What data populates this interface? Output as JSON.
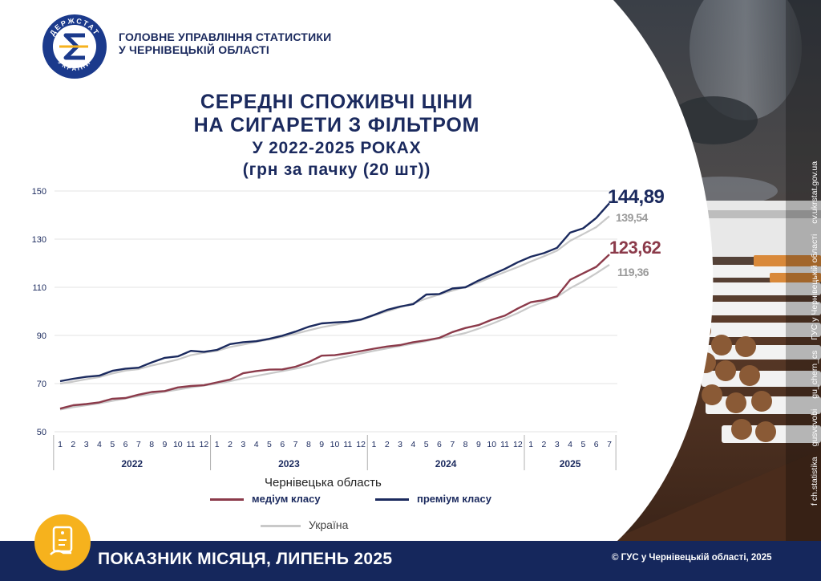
{
  "header": {
    "org_line1": "ГОЛОВНЕ УПРАВЛІННЯ СТАТИСТИКИ",
    "org_line2": "У ЧЕРНІВЕЦЬКІЙ ОБЛАСТІ",
    "logo_top_text": "ДЕРЖСТАТ",
    "logo_bottom_text": "УКРАЇНИ",
    "logo_letter": "Є"
  },
  "title": {
    "line1": "СЕРЕДНІ СПОЖИВЧІ ЦІНИ",
    "line2": "НА СИГАРЕТИ З ФІЛЬТРОМ",
    "line3": "У 2022-2025 РОКАХ",
    "line4": "(грн за пачку (20 шт))"
  },
  "legend": {
    "group_title": "Чернівецька область",
    "medium_label": "медіум класу",
    "premium_label": "преміум класу",
    "ukraine_label": "Україна"
  },
  "footer": {
    "title": "ПОКАЗНИК МІСЯЦЯ, ЛИПЕНЬ 2025",
    "copyright": "© ГУС у Чернівецькій області, 2025"
  },
  "social": [
    "f ch.statistika",
    "gusvcvobi",
    "gu_chern_cs",
    "ГУС у Чернівецькій області",
    "cv.ukrstat.gov.ua"
  ],
  "colors": {
    "premium": "#1b2a5e",
    "medium": "#8b3a4a",
    "ukraine": "#c9c9c9",
    "navy": "#15275c",
    "accent": "#f6b21d"
  },
  "icons": {
    "badge": "document-hand-icon",
    "photo": "cigarettes-photo"
  },
  "chart_data": {
    "type": "line",
    "ylim": [
      50,
      150
    ],
    "yticks": [
      50,
      70,
      90,
      110,
      130,
      150
    ],
    "months": [
      "1",
      "2",
      "3",
      "4",
      "5",
      "6",
      "7",
      "8",
      "9",
      "10",
      "11",
      "12",
      "1",
      "2",
      "3",
      "4",
      "5",
      "6",
      "7",
      "8",
      "9",
      "10",
      "11",
      "12",
      "1",
      "2",
      "3",
      "4",
      "5",
      "6",
      "7",
      "8",
      "9",
      "10",
      "11",
      "12",
      "1",
      "2",
      "3",
      "4",
      "5",
      "6",
      "7"
    ],
    "years": [
      {
        "label": "2022",
        "count": 12
      },
      {
        "label": "2023",
        "count": 12
      },
      {
        "label": "2024",
        "count": 12
      },
      {
        "label": "2025",
        "count": 7
      }
    ],
    "grid": true,
    "series": [
      {
        "name": "премiум_cv",
        "key": "premium_cv",
        "color": "#1b2a5e",
        "end_label": "144,89",
        "values": [
          71.0,
          72.0,
          72.8,
          73.3,
          75.3,
          76.2,
          76.6,
          78.8,
          80.7,
          81.3,
          83.6,
          83.2,
          84.0,
          86.4,
          87.2,
          87.6,
          88.6,
          89.9,
          91.6,
          93.6,
          95.0,
          95.4,
          95.7,
          96.6,
          98.5,
          100.6,
          102.0,
          103.0,
          107.0,
          107.2,
          109.5,
          110.0,
          112.8,
          115.2,
          117.6,
          120.4,
          122.7,
          124.2,
          126.4,
          132.7,
          134.5,
          138.8,
          144.89
        ]
      },
      {
        "name": "premium_ua",
        "key": "premium_ua",
        "color": "#c9c9c9",
        "end_label": "139,54",
        "values": [
          70.0,
          70.8,
          71.8,
          72.7,
          74.2,
          75.4,
          76.0,
          77.5,
          78.7,
          80.0,
          81.8,
          82.8,
          83.6,
          85.2,
          86.2,
          87.3,
          88.3,
          89.4,
          90.7,
          92.1,
          93.4,
          94.4,
          95.4,
          96.4,
          98.3,
          100.0,
          101.7,
          103.4,
          105.3,
          107.0,
          108.6,
          110.2,
          112.0,
          114.2,
          116.3,
          118.4,
          120.7,
          122.9,
          125.2,
          129.3,
          132.1,
          135.0,
          139.54
        ]
      },
      {
        "name": "medium_cv",
        "key": "medium_cv",
        "color": "#8b3a4a",
        "end_label": "123,62",
        "values": [
          59.6,
          61.0,
          61.5,
          62.2,
          63.7,
          64.0,
          65.4,
          66.5,
          66.9,
          68.4,
          69.0,
          69.3,
          70.5,
          71.7,
          74.3,
          75.2,
          75.8,
          75.9,
          77.0,
          78.9,
          81.6,
          81.8,
          82.6,
          83.5,
          84.5,
          85.4,
          86.0,
          87.2,
          88.0,
          89.0,
          91.4,
          93.1,
          94.3,
          96.5,
          98.2,
          101.2,
          103.8,
          104.7,
          106.3,
          113.1,
          115.8,
          118.5,
          123.62
        ]
      },
      {
        "name": "medium_ua",
        "key": "medium_ua",
        "color": "#c9c9c9",
        "end_label": "119,36",
        "values": [
          59.2,
          60.2,
          61.0,
          61.8,
          62.8,
          63.8,
          64.8,
          65.7,
          66.6,
          67.5,
          68.4,
          69.2,
          70.0,
          71.0,
          72.2,
          73.2,
          74.2,
          75.2,
          76.2,
          77.4,
          78.8,
          80.2,
          81.3,
          82.5,
          83.6,
          84.6,
          85.6,
          86.6,
          87.6,
          88.8,
          89.8,
          91.0,
          92.8,
          94.8,
          97.0,
          99.3,
          102.0,
          104.0,
          106.0,
          109.6,
          112.5,
          115.8,
          119.36
        ]
      }
    ]
  }
}
